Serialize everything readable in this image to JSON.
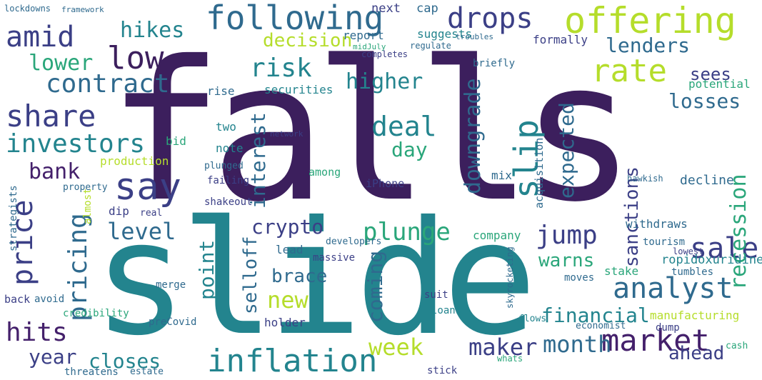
{
  "cloud": {
    "big": [
      "falls",
      "slide"
    ],
    "large": [
      "following",
      "offering",
      "drops",
      "amid",
      "low",
      "rate",
      "risk",
      "contract",
      "share",
      "slip",
      "say",
      "investors",
      "price",
      "market",
      "inflation",
      "analyst",
      "sale",
      "plunge",
      "hits",
      "pricing"
    ],
    "medium": [
      "hikes",
      "decision",
      "lower",
      "lenders",
      "sees",
      "higher",
      "losses",
      "deal",
      "downgrade",
      "expected",
      "recession",
      "interest",
      "day",
      "bank",
      "sanctions",
      "jump",
      "level",
      "crypto",
      "point",
      "warns",
      "selloff",
      "coming",
      "new",
      "brace",
      "financial",
      "week",
      "maker",
      "month",
      "ahead",
      "closes",
      "year"
    ],
    "small": [
      "next",
      "cap",
      "report",
      "suggests",
      "formally",
      "potential",
      "rise",
      "securities",
      "completes",
      "briefly",
      "two",
      "bid",
      "note",
      "production",
      "plunged",
      "failing",
      "among",
      "iPhone",
      "acquisition",
      "mix",
      "decline",
      "hawkish",
      "shakeout",
      "dip",
      "company",
      "withdraws",
      "lead",
      "developers",
      "massive",
      "ropidoxuridine",
      "lowest",
      "tourism",
      "stake",
      "moves",
      "tumbles",
      "merge",
      "credibility",
      "preCovid",
      "holder",
      "manufacturing",
      "economist",
      "dump",
      "loans",
      "threatens",
      "estate",
      "stick",
      "flows",
      "cash",
      "whats",
      "back",
      "avoid",
      "almost",
      "strategists",
      "property",
      "real",
      "suit",
      "skyrocketing",
      "network",
      "regulate",
      "troubles",
      "framework",
      "lockdowns",
      "midJuly"
    ]
  }
}
